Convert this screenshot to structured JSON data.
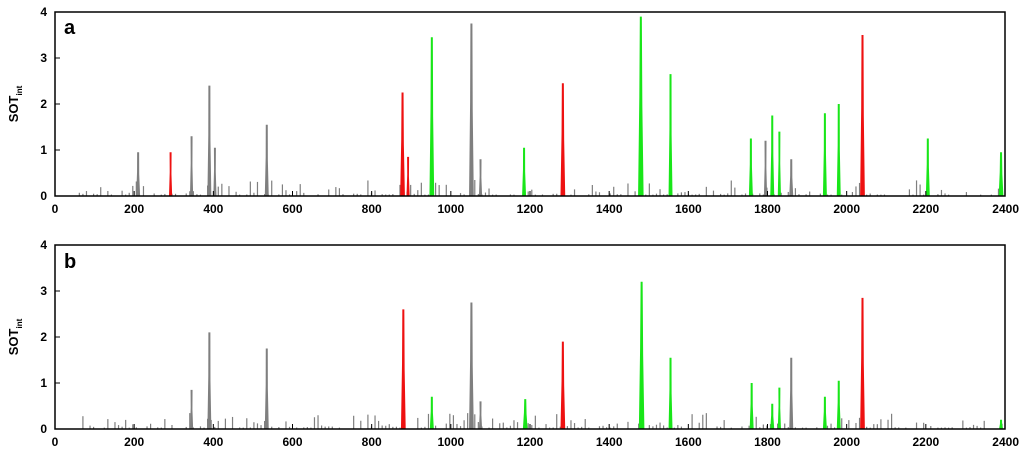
{
  "figure": {
    "colors": {
      "grey": "#7f7f7f",
      "green": "#19e619",
      "red": "#ee1111",
      "frame": "#000000"
    }
  },
  "chart_data": [
    {
      "type": "bar",
      "panel_letter": "a",
      "ylabel_main": "SOT",
      "ylabel_sub": "int",
      "xlim": [
        0,
        2400
      ],
      "ylim": [
        0,
        4
      ],
      "xticks": [
        0,
        200,
        400,
        600,
        800,
        1000,
        1200,
        1400,
        1600,
        1800,
        2000,
        2200,
        2400
      ],
      "yticks": [
        0,
        1,
        2,
        3,
        4
      ],
      "peaks": [
        {
          "x": 210,
          "h": 0.95,
          "w": 10,
          "c": "grey"
        },
        {
          "x": 292,
          "h": 0.95,
          "w": 8,
          "c": "red"
        },
        {
          "x": 345,
          "h": 1.3,
          "w": 8,
          "c": "grey"
        },
        {
          "x": 390,
          "h": 2.4,
          "w": 10,
          "c": "grey"
        },
        {
          "x": 404,
          "h": 1.05,
          "w": 8,
          "c": "grey"
        },
        {
          "x": 535,
          "h": 1.55,
          "w": 10,
          "c": "grey"
        },
        {
          "x": 878,
          "h": 2.25,
          "w": 12,
          "c": "red"
        },
        {
          "x": 892,
          "h": 0.85,
          "w": 8,
          "c": "red"
        },
        {
          "x": 952,
          "h": 3.45,
          "w": 12,
          "c": "green"
        },
        {
          "x": 1052,
          "h": 3.75,
          "w": 12,
          "c": "grey"
        },
        {
          "x": 1075,
          "h": 0.8,
          "w": 8,
          "c": "grey"
        },
        {
          "x": 1185,
          "h": 1.05,
          "w": 10,
          "c": "green"
        },
        {
          "x": 1283,
          "h": 2.45,
          "w": 12,
          "c": "red"
        },
        {
          "x": 1480,
          "h": 3.9,
          "w": 14,
          "c": "green"
        },
        {
          "x": 1555,
          "h": 2.65,
          "w": 10,
          "c": "green"
        },
        {
          "x": 1758,
          "h": 1.25,
          "w": 10,
          "c": "green"
        },
        {
          "x": 1795,
          "h": 1.2,
          "w": 8,
          "c": "grey"
        },
        {
          "x": 1812,
          "h": 1.75,
          "w": 10,
          "c": "green"
        },
        {
          "x": 1830,
          "h": 1.4,
          "w": 8,
          "c": "green"
        },
        {
          "x": 1860,
          "h": 0.8,
          "w": 10,
          "c": "grey"
        },
        {
          "x": 1945,
          "h": 1.8,
          "w": 10,
          "c": "green"
        },
        {
          "x": 1980,
          "h": 2.0,
          "w": 10,
          "c": "green"
        },
        {
          "x": 2040,
          "h": 3.5,
          "w": 12,
          "c": "red"
        },
        {
          "x": 2205,
          "h": 1.25,
          "w": 10,
          "c": "green"
        },
        {
          "x": 2390,
          "h": 0.95,
          "w": 12,
          "c": "green"
        }
      ]
    },
    {
      "type": "bar",
      "panel_letter": "b",
      "ylabel_main": "SOT",
      "ylabel_sub": "int",
      "xlim": [
        0,
        2400
      ],
      "ylim": [
        0,
        4
      ],
      "xticks": [
        0,
        200,
        400,
        600,
        800,
        1000,
        1200,
        1400,
        1600,
        1800,
        2000,
        2200,
        2400
      ],
      "yticks": [
        0,
        1,
        2,
        3,
        4
      ],
      "peaks": [
        {
          "x": 345,
          "h": 0.85,
          "w": 8,
          "c": "grey"
        },
        {
          "x": 390,
          "h": 2.1,
          "w": 10,
          "c": "grey"
        },
        {
          "x": 535,
          "h": 1.75,
          "w": 10,
          "c": "grey"
        },
        {
          "x": 880,
          "h": 2.6,
          "w": 12,
          "c": "red"
        },
        {
          "x": 952,
          "h": 0.7,
          "w": 10,
          "c": "green"
        },
        {
          "x": 1052,
          "h": 2.75,
          "w": 12,
          "c": "grey"
        },
        {
          "x": 1075,
          "h": 0.6,
          "w": 8,
          "c": "grey"
        },
        {
          "x": 1188,
          "h": 0.65,
          "w": 12,
          "c": "green"
        },
        {
          "x": 1283,
          "h": 1.9,
          "w": 12,
          "c": "red"
        },
        {
          "x": 1482,
          "h": 3.2,
          "w": 14,
          "c": "green"
        },
        {
          "x": 1555,
          "h": 1.55,
          "w": 10,
          "c": "green"
        },
        {
          "x": 1760,
          "h": 1.0,
          "w": 10,
          "c": "green"
        },
        {
          "x": 1812,
          "h": 0.55,
          "w": 10,
          "c": "green"
        },
        {
          "x": 1830,
          "h": 0.9,
          "w": 8,
          "c": "green"
        },
        {
          "x": 1860,
          "h": 1.55,
          "w": 10,
          "c": "grey"
        },
        {
          "x": 1945,
          "h": 0.7,
          "w": 10,
          "c": "green"
        },
        {
          "x": 1980,
          "h": 1.05,
          "w": 10,
          "c": "green"
        },
        {
          "x": 2040,
          "h": 2.85,
          "w": 12,
          "c": "red"
        },
        {
          "x": 2390,
          "h": 0.2,
          "w": 10,
          "c": "green"
        }
      ]
    }
  ]
}
